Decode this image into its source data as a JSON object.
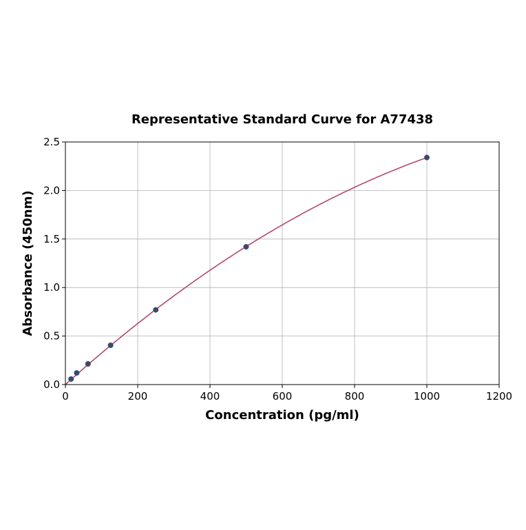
{
  "chart_data": {
    "type": "scatter",
    "title": "Representative Standard Curve for A77438",
    "xlabel": "Concentration (pg/ml)",
    "ylabel": "Absorbance (450nm)",
    "xlim": [
      0,
      1200
    ],
    "ylim": [
      0,
      2.5
    ],
    "xticks": [
      0,
      200,
      400,
      600,
      800,
      1000,
      1200
    ],
    "yticks": [
      "0.0",
      "0.5",
      "1.0",
      "1.5",
      "2.0",
      "2.5"
    ],
    "grid": true,
    "fit_line": true,
    "points": [
      {
        "x": 15.6,
        "y": 0.057
      },
      {
        "x": 31.25,
        "y": 0.12
      },
      {
        "x": 62.5,
        "y": 0.213
      },
      {
        "x": 125,
        "y": 0.405
      },
      {
        "x": 250,
        "y": 0.77
      },
      {
        "x": 500,
        "y": 1.42
      },
      {
        "x": 1000,
        "y": 2.34
      }
    ],
    "colors": {
      "point": "#3b4a6b",
      "curve": "#b5476b",
      "grid": "#b0b0b0"
    }
  }
}
